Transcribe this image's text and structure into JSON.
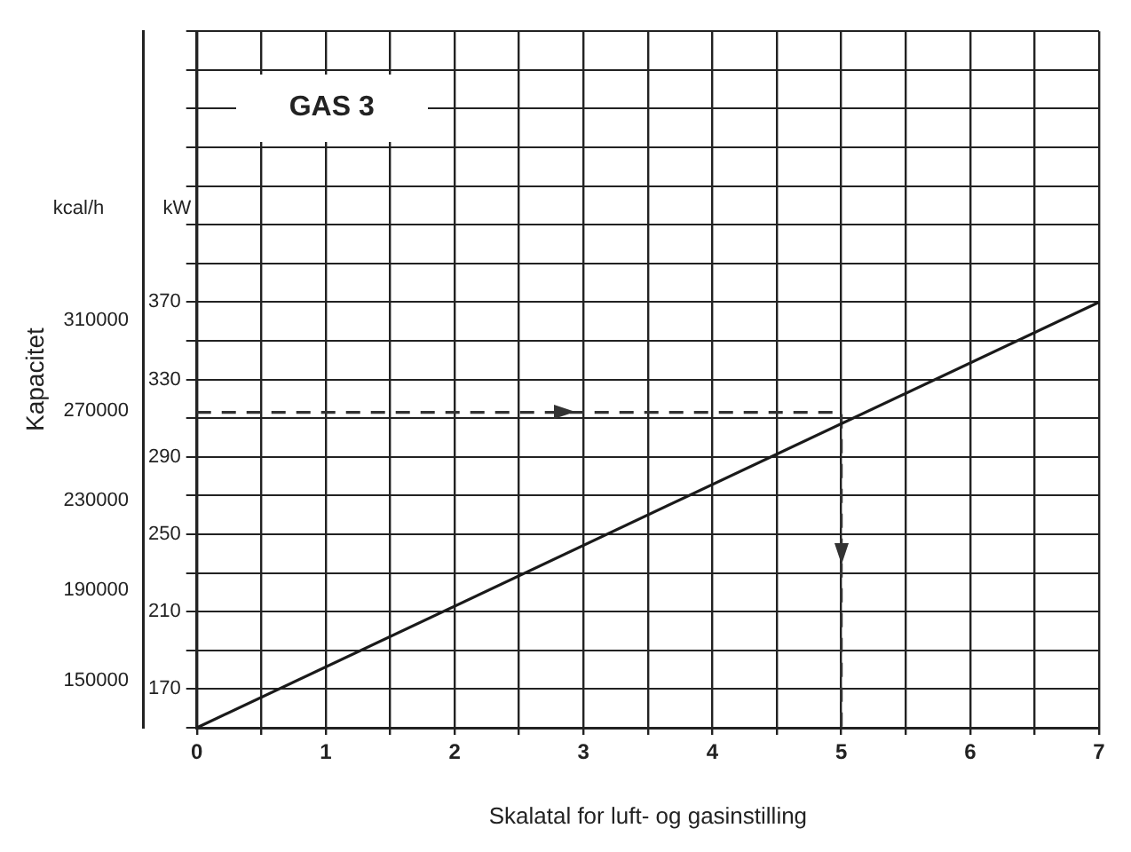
{
  "chart_data": {
    "type": "line",
    "title": "GAS 3",
    "xlabel": "Skalatal for luft- og gasinstilling",
    "y2label": "Kapacitet",
    "annotations": [
      "kcal/h",
      "kW"
    ],
    "xlim": [
      0,
      7
    ],
    "xticks": [
      0,
      {
        "value": 0.5,
        "label": null
      },
      1,
      {
        "value": 1.5,
        "label": null
      },
      2,
      {
        "value": 2.5,
        "label": null
      },
      3,
      {
        "value": 3.5,
        "label": null
      },
      4,
      {
        "value": 4.5,
        "label": null
      },
      5,
      {
        "value": 5.5,
        "label": null
      },
      6,
      {
        "value": 6.5,
        "label": null
      },
      7
    ],
    "ylim": [
      150,
      510
    ],
    "yticks": [
      {
        "value": 150,
        "label": null
      },
      170,
      {
        "value": 190,
        "label": null
      },
      210,
      {
        "value": 230,
        "label": null
      },
      250,
      {
        "value": 270,
        "label": null
      },
      290,
      {
        "value": 310,
        "label": null
      },
      330,
      {
        "value": 350,
        "label": null
      },
      370,
      {
        "value": 390,
        "label": null
      },
      {
        "value": 410,
        "label": null
      },
      {
        "value": 430,
        "label": null
      },
      {
        "value": 450,
        "label": null
      },
      {
        "value": 470,
        "label": null
      },
      {
        "value": 490,
        "label": null
      },
      {
        "value": 510,
        "label": null
      }
    ],
    "y2lim": [
      129000,
      438600
    ],
    "y2ticks": [
      150000,
      190000,
      230000,
      270000,
      310000
    ],
    "grid": true,
    "marker": "none",
    "legend": false,
    "series": [
      {
        "x": [
          0,
          7
        ],
        "values": [
          150,
          370
        ],
        "color": "#1a1a1a",
        "line_style": "solid"
      },
      {
        "x": [
          0,
          5,
          5
        ],
        "values": [
          313,
          313,
          150
        ],
        "color": "#333333",
        "line_style": "dashed"
      }
    ]
  }
}
